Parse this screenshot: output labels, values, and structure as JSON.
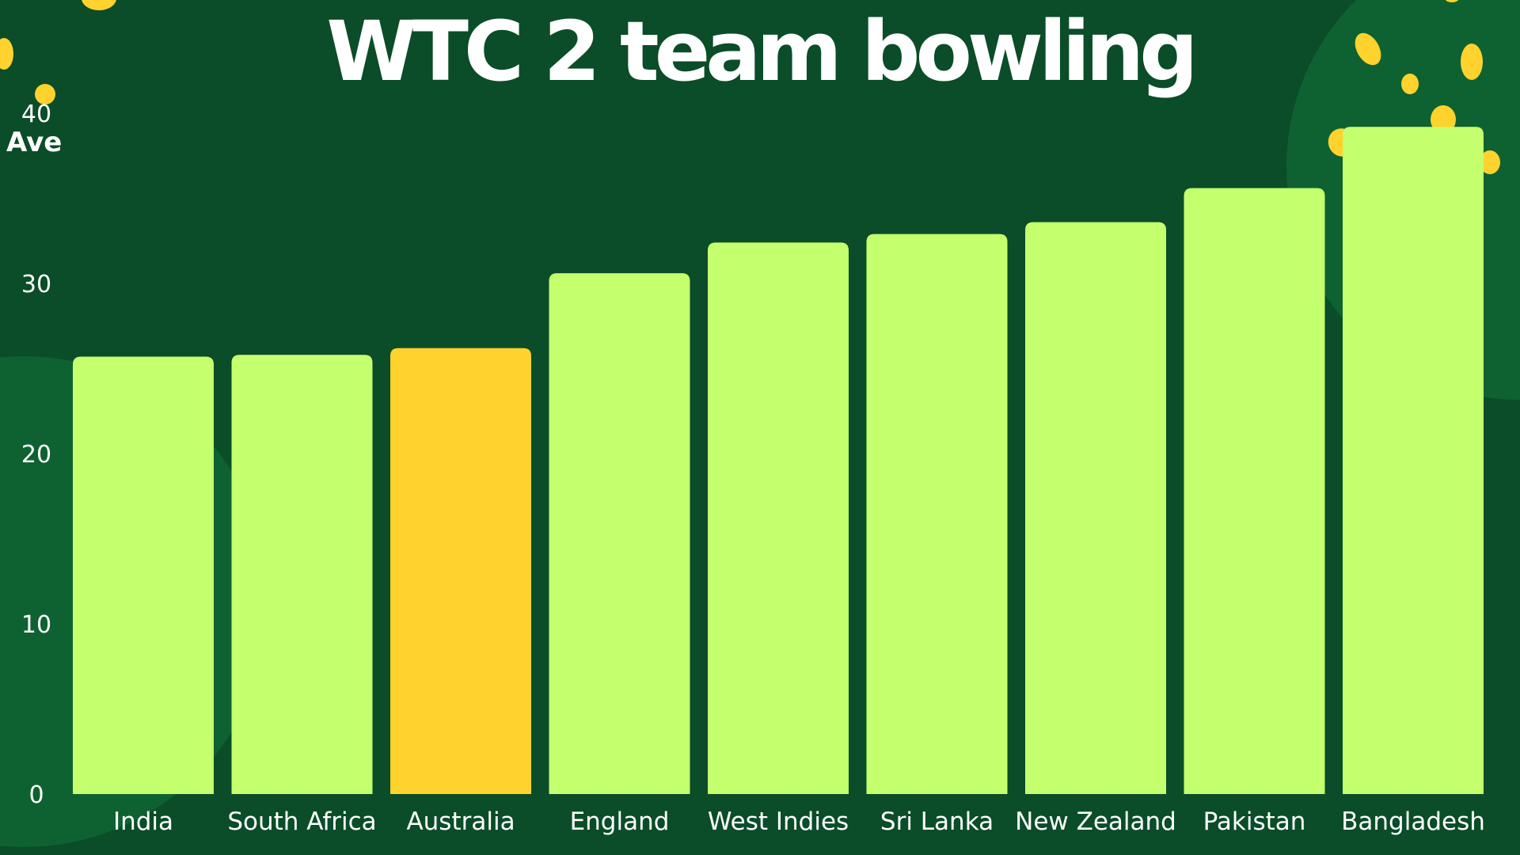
{
  "chart_data": {
    "type": "bar",
    "title": "WTC 2 team bowling",
    "ylabel": "Ave",
    "xlabel": "",
    "categories": [
      "India",
      "South Africa",
      "Australia",
      "England",
      "West Indies",
      "Sri Lanka",
      "New Zealand",
      "Pakistan",
      "Bangladesh"
    ],
    "values": [
      25.7,
      25.8,
      26.2,
      30.6,
      32.4,
      32.9,
      33.6,
      35.6,
      39.2
    ],
    "highlight": "Australia",
    "ylim": [
      0,
      40
    ],
    "yticks": [
      0,
      10,
      20,
      30,
      40
    ],
    "grid": false,
    "colors": {
      "background": "#0a4d28",
      "background_shape": "#0e6231",
      "bar": "#c4ff6e",
      "bar_highlight": "#ffd22e",
      "confetti": "#ffd22e",
      "text": "#ffffff"
    }
  }
}
